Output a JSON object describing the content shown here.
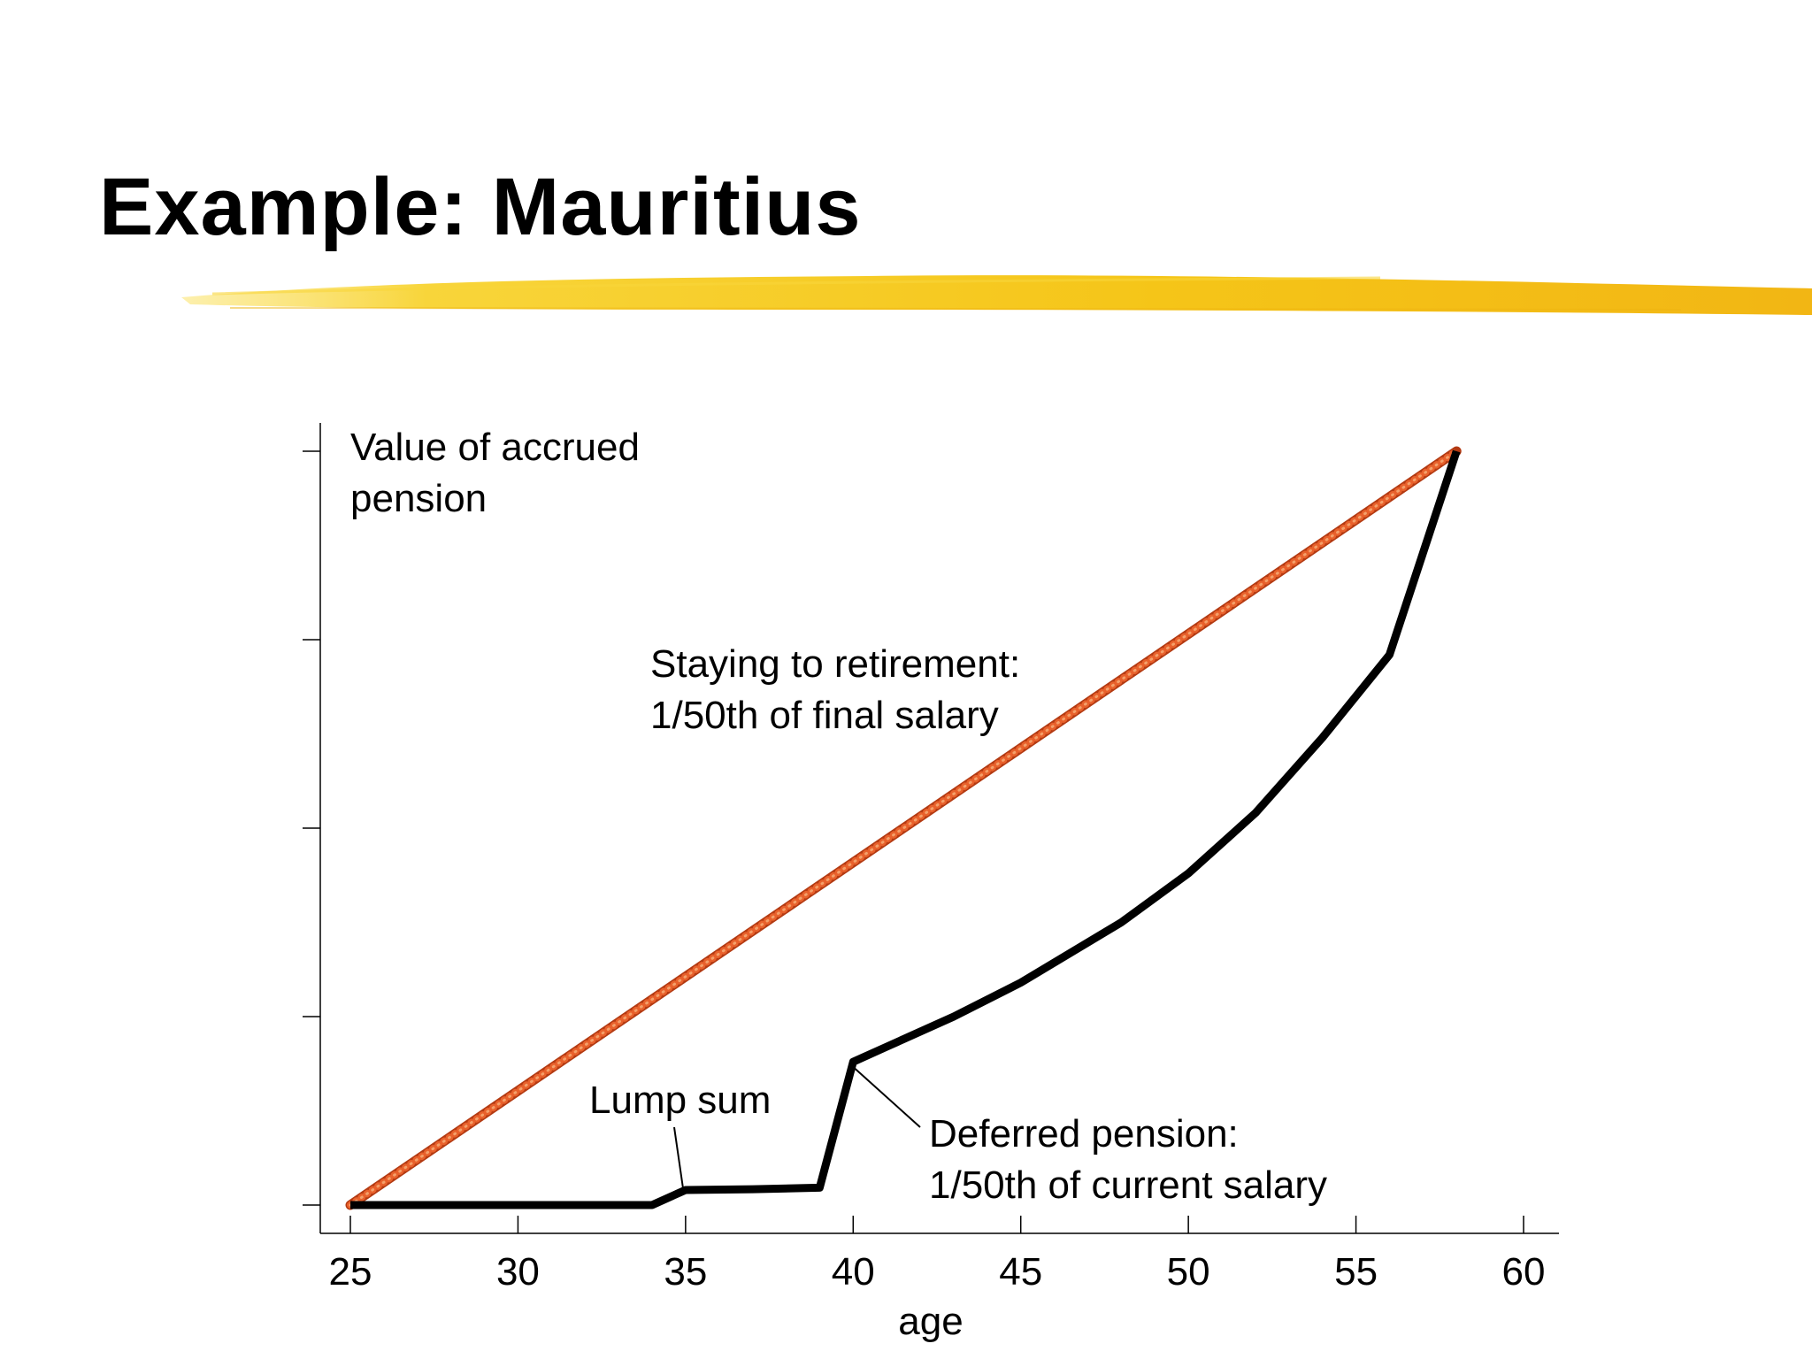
{
  "slide": {
    "title": "Example: Mauritius"
  },
  "colors": {
    "highlight": "#F5C518",
    "staying_line": "#E8612C",
    "deferred_line": "#000000",
    "axis": "#000000"
  },
  "chart_data": {
    "type": "line",
    "xlabel": "age",
    "ylabel": [
      "Value of accrued",
      "pension"
    ],
    "xlim": [
      25,
      60
    ],
    "xticks": [
      25,
      30,
      35,
      40,
      45,
      50,
      55,
      60
    ],
    "ylim": [
      0,
      100
    ],
    "yticks": [
      0,
      25,
      50,
      75,
      100
    ],
    "grid": false,
    "series": [
      {
        "style": "dotted",
        "color": "#E8612C",
        "x": [
          25,
          58
        ],
        "y": [
          0,
          100
        ]
      },
      {
        "style": "solid",
        "color": "#000000",
        "x": [
          25,
          30,
          34,
          35,
          37,
          39,
          40,
          41,
          43,
          45,
          48,
          50,
          52,
          54,
          56,
          58
        ],
        "y": [
          0,
          0,
          0,
          2,
          2.1,
          2.3,
          19,
          21,
          25,
          29.5,
          37.5,
          44,
          52,
          62,
          73,
          100
        ]
      }
    ],
    "annotations": [
      {
        "lines": [
          "Staying to retirement:",
          "1/50th of final salary"
        ],
        "points_to": null
      },
      {
        "lines": [
          "Lump sum"
        ],
        "points_to": {
          "x": 35,
          "y": 2
        }
      },
      {
        "lines": [
          "Deferred pension:",
          "1/50th of current salary"
        ],
        "points_to": {
          "x": 40,
          "y": 19
        }
      }
    ]
  }
}
